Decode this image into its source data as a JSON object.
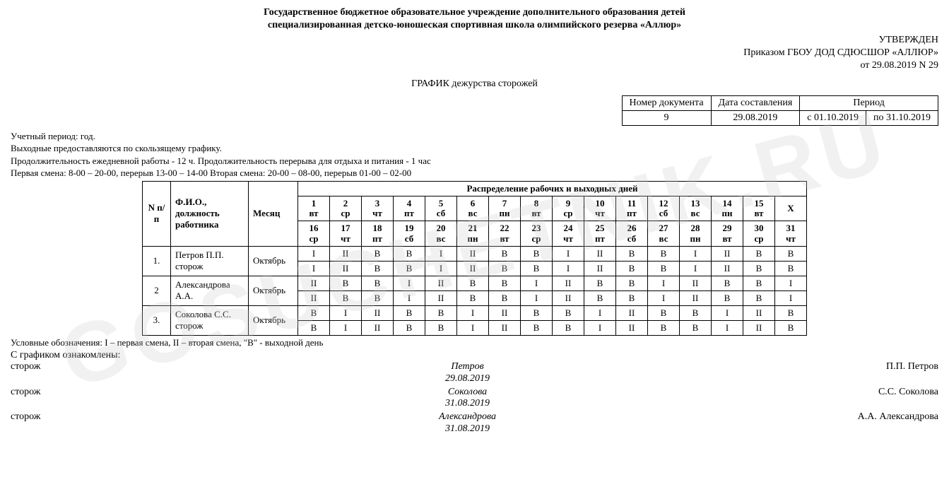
{
  "header": {
    "line1": "Государственное бюджетное образовательное учреждение дополнительного образования детей",
    "line2": "специализированная детско-юношеская спортивная школа олимпийского резерва «Аллюр»"
  },
  "approval": {
    "line1": "УТВЕРЖДЕН",
    "line2": "Приказом ГБОУ ДОД СДЮСШОР «АЛЛЮР»",
    "line3": "от 29.08.2019 N 29"
  },
  "doc_title": "ГРАФИК дежурства сторожей",
  "meta": {
    "h_docnum": "Номер документа",
    "h_date": "Дата составления",
    "h_period": "Период",
    "docnum": "9",
    "date": "29.08.2019",
    "period_from": "с 01.10.2019",
    "period_to": "по 31.10.2019"
  },
  "notes": {
    "l1": "Учетный период: год.",
    "l2": "Выходные предоставляются по скользящему графику.",
    "l3": "Продолжительность ежедневной работы - 12 ч. Продолжительность перерыва для отдыха и питания - 1 час",
    "l4": "Первая смена: 8-00 – 20-00, перерыв 13-00 – 14-00 Вторая смена: 20-00 – 08-00, перерыв 01-00 – 02-00"
  },
  "table": {
    "h_num": "N п/п",
    "h_fio": "Ф.И.О., должность работника",
    "h_month": "Месяц",
    "h_dist": "Распределение рабочих и выходных дней",
    "h_X": "X",
    "days_top": [
      {
        "n": "1",
        "w": "вт"
      },
      {
        "n": "2",
        "w": "ср"
      },
      {
        "n": "3",
        "w": "чт"
      },
      {
        "n": "4",
        "w": "пт"
      },
      {
        "n": "5",
        "w": "сб"
      },
      {
        "n": "6",
        "w": "вс"
      },
      {
        "n": "7",
        "w": "пн"
      },
      {
        "n": "8",
        "w": "вт"
      },
      {
        "n": "9",
        "w": "ср"
      },
      {
        "n": "10",
        "w": "чт"
      },
      {
        "n": "11",
        "w": "пт"
      },
      {
        "n": "12",
        "w": "сб"
      },
      {
        "n": "13",
        "w": "вс"
      },
      {
        "n": "14",
        "w": "пн"
      },
      {
        "n": "15",
        "w": "вт"
      }
    ],
    "days_bot": [
      {
        "n": "16",
        "w": "ср"
      },
      {
        "n": "17",
        "w": "чт"
      },
      {
        "n": "18",
        "w": "пт"
      },
      {
        "n": "19",
        "w": "сб"
      },
      {
        "n": "20",
        "w": "вс"
      },
      {
        "n": "21",
        "w": "пн"
      },
      {
        "n": "22",
        "w": "вт"
      },
      {
        "n": "23",
        "w": "ср"
      },
      {
        "n": "24",
        "w": "чт"
      },
      {
        "n": "25",
        "w": "пт"
      },
      {
        "n": "26",
        "w": "сб"
      },
      {
        "n": "27",
        "w": "вс"
      },
      {
        "n": "28",
        "w": "пн"
      },
      {
        "n": "29",
        "w": "вт"
      },
      {
        "n": "30",
        "w": "ср"
      },
      {
        "n": "31",
        "w": "чт"
      }
    ],
    "rows": [
      {
        "num": "1.",
        "fio": "Петров П.П. сторож",
        "month": "Октябрь",
        "r1": [
          "I",
          "II",
          "В",
          "В",
          "I",
          "II",
          "В",
          "В",
          "I",
          "II",
          "В",
          "В",
          "I",
          "II",
          "В",
          "В"
        ],
        "r2": [
          "I",
          "II",
          "В",
          "В",
          "I",
          "II",
          "В",
          "В",
          "I",
          "II",
          "В",
          "В",
          "I",
          "II",
          "В",
          "В"
        ]
      },
      {
        "num": "2",
        "fio": "Александрова А.А.",
        "month": "Октябрь",
        "r1": [
          "II",
          "В",
          "В",
          "I",
          "II",
          "В",
          "В",
          "I",
          "II",
          "В",
          "В",
          "I",
          "II",
          "В",
          "В",
          "I"
        ],
        "r2": [
          "II",
          "В",
          "В",
          "I",
          "II",
          "В",
          "В",
          "I",
          "II",
          "В",
          "В",
          "I",
          "II",
          "В",
          "В",
          "I"
        ]
      },
      {
        "num": "3.",
        "fio": "Соколова С.С. сторож",
        "month": "Октябрь",
        "r1": [
          "В",
          "I",
          "II",
          "В",
          "В",
          "I",
          "II",
          "В",
          "В",
          "I",
          "II",
          "В",
          "В",
          "I",
          "II",
          "В"
        ],
        "r2": [
          "В",
          "I",
          "II",
          "В",
          "В",
          "I",
          "II",
          "В",
          "В",
          "I",
          "II",
          "В",
          "В",
          "I",
          "II",
          "В"
        ]
      }
    ]
  },
  "legend": "Условные обозначения: I – первая смена, II – вторая смена, \"В\" - выходной день",
  "sign": {
    "intro": "С графиком ознакомлены:",
    "role": "сторож",
    "s1_mid1": "Петров",
    "s1_mid2": "29.08.2019",
    "s1_right": "П.П. Петров",
    "s2_mid1": "Соколова",
    "s2_mid2": "31.08.2019",
    "s2_right": "С.С. Соколова",
    "s3_mid1": "Александрова",
    "s3_mid2": "31.08.2019",
    "s3_right": "А.А. Александрова"
  },
  "watermark": "GOSUCHETNIK.RU"
}
